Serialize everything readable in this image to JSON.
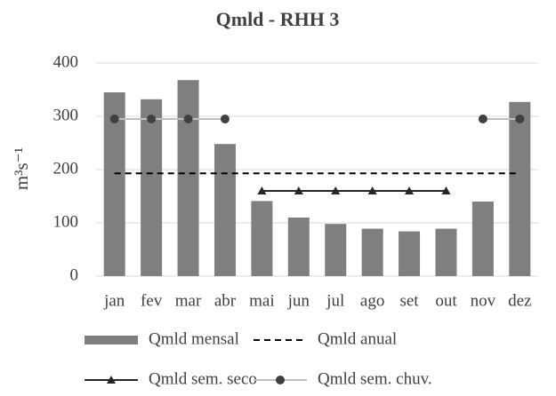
{
  "chart_data": {
    "type": "bar",
    "title": "Qmld - RHH 3",
    "ylabel": "m³s⁻¹",
    "categories": [
      "jan",
      "fev",
      "mar",
      "abr",
      "mai",
      "jun",
      "jul",
      "ago",
      "set",
      "out",
      "nov",
      "dez"
    ],
    "series": [
      {
        "name": "Qmld mensal",
        "type": "bar",
        "color": "#7f7f7f",
        "values": [
          345,
          332,
          368,
          248,
          141,
          110,
          98,
          89,
          84,
          89,
          140,
          327
        ]
      },
      {
        "name": "Qmld anual",
        "type": "line",
        "dash": true,
        "color": "#000000",
        "values": [
          193,
          193,
          193,
          193,
          193,
          193,
          193,
          193,
          193,
          193,
          193,
          193
        ]
      },
      {
        "name": "Qmld sem. seco",
        "type": "line",
        "marker": "triangle",
        "color": "#262626",
        "values": [
          null,
          null,
          null,
          null,
          160,
          160,
          160,
          160,
          160,
          160,
          null,
          null
        ]
      },
      {
        "name": "Qmld sem. chuv.",
        "type": "line",
        "marker": "circle",
        "color": "#bfbfbf",
        "marker_color": "#404040",
        "values": [
          295,
          295,
          295,
          295,
          null,
          null,
          null,
          null,
          null,
          null,
          295,
          295
        ]
      }
    ],
    "ylim": [
      0,
      400
    ],
    "yticks": [
      0,
      100,
      200,
      300,
      400
    ],
    "grid": true
  }
}
